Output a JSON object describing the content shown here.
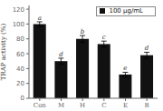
{
  "chart_data": {
    "type": "bar",
    "categories": [
      "Con",
      "M",
      "H",
      "C",
      "E",
      "B"
    ],
    "series": [
      {
        "name": "100 μg/mL",
        "color": "#111111",
        "values": [
          100,
          50,
          80,
          73,
          32,
          58
        ],
        "errors": [
          3.0,
          4.0,
          4.5,
          4.0,
          3.0,
          4.0
        ],
        "letters": [
          "a",
          "d",
          "b",
          "c",
          "e",
          "d"
        ]
      }
    ],
    "ylabel": "TRAP activity (%)",
    "ylim": [
      0,
      125
    ],
    "yticks": [
      0,
      20,
      40,
      60,
      80,
      100,
      120
    ],
    "grid": false,
    "legend": "upper right"
  }
}
